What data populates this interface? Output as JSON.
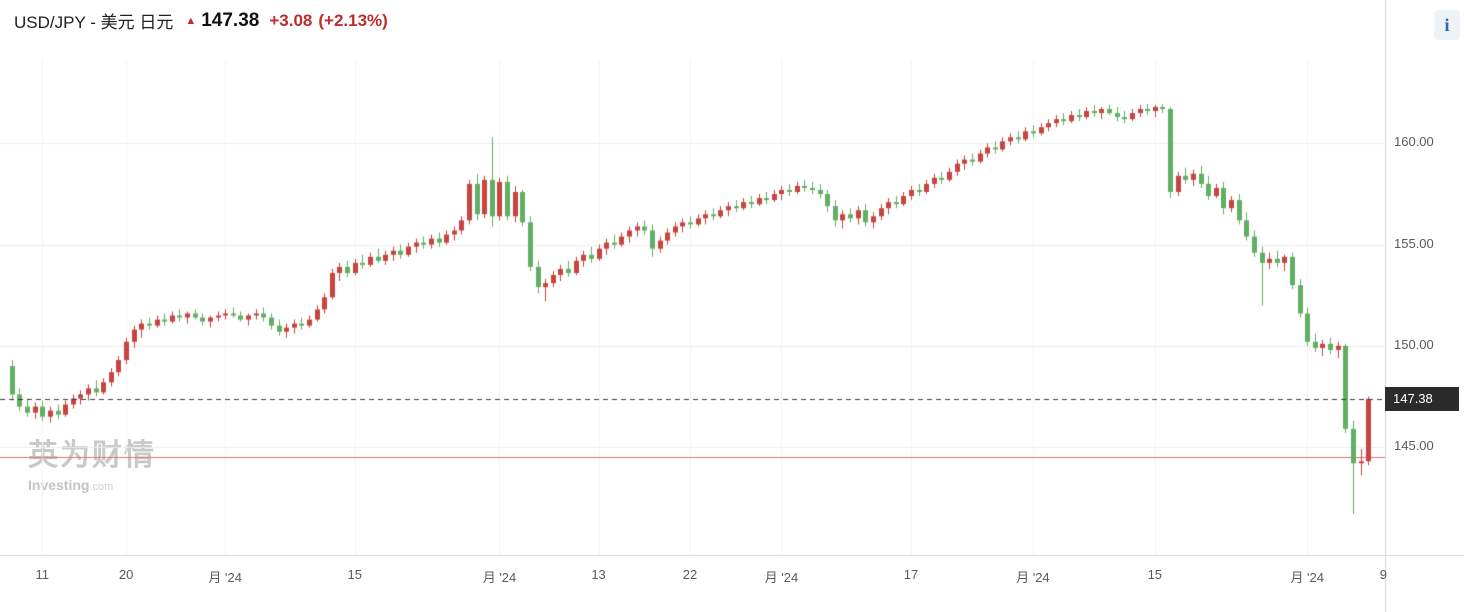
{
  "header": {
    "title": "USD/JPY - 美元 日元",
    "arrow_up": "▲",
    "price": "147.38",
    "change": "+3.08",
    "change_percent": "(+2.13%)"
  },
  "info_button": {
    "label": "i"
  },
  "watermark": {
    "cjk": "英为财情",
    "brand": "Investing",
    "brand_suffix": ".com"
  },
  "chart_data": {
    "type": "candlestick",
    "symbol": "USD/JPY",
    "current_price": 147.38,
    "current_price_label": "147.38",
    "horizontal_red_line": 144.5,
    "ylim": [
      139.67,
      164.12
    ],
    "y_ticks": [
      {
        "value": 160,
        "label": "160.00"
      },
      {
        "value": 155,
        "label": "155.00"
      },
      {
        "value": 150,
        "label": "150.00"
      },
      {
        "value": 145,
        "label": "145.00"
      }
    ],
    "x_labels": [
      {
        "i": 4,
        "label": "11"
      },
      {
        "i": 15,
        "label": "20"
      },
      {
        "i": 28,
        "label": "月 '24"
      },
      {
        "i": 45,
        "label": "15"
      },
      {
        "i": 64,
        "label": "月 '24"
      },
      {
        "i": 77,
        "label": "13"
      },
      {
        "i": 89,
        "label": "22"
      },
      {
        "i": 101,
        "label": "月 '24"
      },
      {
        "i": 118,
        "label": "17"
      },
      {
        "i": 134,
        "label": "月 '24"
      },
      {
        "i": 150,
        "label": "15"
      },
      {
        "i": 170,
        "label": "月 '24"
      },
      {
        "i": 180,
        "label": "9"
      }
    ],
    "colors": {
      "up": "#c64540",
      "down": "#63ae65",
      "grid": "#ededed",
      "grid_vertical": "#f3f3f3",
      "axis_line": "#d6d6d6",
      "dashed_line": "#3c3c3c",
      "red_line": "#e2716d",
      "tag_bg": "#2b2b2b",
      "tag_text": "#ffffff",
      "tick_text": "#5a5a5a",
      "change_red": "#bf2c2c"
    },
    "ohlc": [
      [
        149.0,
        149.3,
        147.3,
        147.6
      ],
      [
        147.6,
        147.9,
        146.8,
        147.0
      ],
      [
        147.0,
        147.4,
        146.5,
        146.7
      ],
      [
        146.7,
        147.2,
        146.4,
        147.0
      ],
      [
        147.0,
        147.3,
        146.3,
        146.5
      ],
      [
        146.5,
        147.0,
        146.2,
        146.8
      ],
      [
        146.8,
        147.1,
        146.4,
        146.6
      ],
      [
        146.6,
        147.3,
        146.5,
        147.1
      ],
      [
        147.1,
        147.6,
        146.9,
        147.4
      ],
      [
        147.4,
        147.8,
        147.1,
        147.6
      ],
      [
        147.6,
        148.1,
        147.3,
        147.9
      ],
      [
        147.9,
        148.3,
        147.5,
        147.7
      ],
      [
        147.7,
        148.4,
        147.6,
        148.2
      ],
      [
        148.2,
        148.9,
        148.0,
        148.7
      ],
      [
        148.7,
        149.5,
        148.5,
        149.3
      ],
      [
        149.3,
        150.4,
        149.1,
        150.2
      ],
      [
        150.2,
        151.0,
        149.9,
        150.8
      ],
      [
        150.8,
        151.3,
        150.4,
        151.1
      ],
      [
        151.1,
        151.4,
        150.8,
        151.0
      ],
      [
        151.0,
        151.5,
        150.9,
        151.3
      ],
      [
        151.3,
        151.6,
        151.0,
        151.2
      ],
      [
        151.2,
        151.7,
        151.1,
        151.5
      ],
      [
        151.5,
        151.8,
        151.2,
        151.4
      ],
      [
        151.4,
        151.7,
        151.1,
        151.6
      ],
      [
        151.6,
        151.8,
        151.3,
        151.4
      ],
      [
        151.4,
        151.6,
        151.0,
        151.2
      ],
      [
        151.2,
        151.5,
        150.9,
        151.4
      ],
      [
        151.4,
        151.7,
        151.2,
        151.5
      ],
      [
        151.5,
        151.8,
        151.3,
        151.6
      ],
      [
        151.6,
        151.9,
        151.4,
        151.5
      ],
      [
        151.5,
        151.7,
        151.2,
        151.3
      ],
      [
        151.3,
        151.6,
        151.0,
        151.5
      ],
      [
        151.5,
        151.8,
        151.3,
        151.6
      ],
      [
        151.6,
        151.9,
        151.2,
        151.4
      ],
      [
        151.4,
        151.6,
        150.8,
        151.0
      ],
      [
        151.0,
        151.3,
        150.5,
        150.7
      ],
      [
        150.7,
        151.1,
        150.4,
        150.9
      ],
      [
        150.9,
        151.3,
        150.6,
        151.1
      ],
      [
        151.1,
        151.4,
        150.8,
        151.0
      ],
      [
        151.0,
        151.5,
        150.9,
        151.3
      ],
      [
        151.3,
        152.0,
        151.2,
        151.8
      ],
      [
        151.8,
        152.6,
        151.6,
        152.4
      ],
      [
        152.4,
        153.8,
        152.3,
        153.6
      ],
      [
        153.6,
        154.1,
        153.2,
        153.9
      ],
      [
        153.9,
        154.2,
        153.4,
        153.6
      ],
      [
        153.6,
        154.3,
        153.5,
        154.1
      ],
      [
        154.1,
        154.5,
        153.8,
        154.0
      ],
      [
        154.0,
        154.6,
        153.9,
        154.4
      ],
      [
        154.4,
        154.8,
        154.1,
        154.2
      ],
      [
        154.2,
        154.7,
        154.0,
        154.5
      ],
      [
        154.5,
        154.9,
        154.2,
        154.7
      ],
      [
        154.7,
        155.0,
        154.3,
        154.5
      ],
      [
        154.5,
        155.1,
        154.4,
        154.9
      ],
      [
        154.9,
        155.3,
        154.6,
        155.1
      ],
      [
        155.1,
        155.4,
        154.8,
        155.0
      ],
      [
        155.0,
        155.5,
        154.8,
        155.3
      ],
      [
        155.3,
        155.6,
        154.9,
        155.1
      ],
      [
        155.1,
        155.7,
        155.0,
        155.5
      ],
      [
        155.5,
        155.9,
        155.2,
        155.7
      ],
      [
        155.7,
        156.4,
        155.5,
        156.2
      ],
      [
        156.2,
        158.2,
        156.0,
        158.0
      ],
      [
        158.0,
        158.5,
        156.2,
        156.5
      ],
      [
        156.5,
        158.4,
        156.3,
        158.2
      ],
      [
        158.2,
        160.3,
        155.9,
        156.4
      ],
      [
        156.4,
        158.3,
        156.2,
        158.1
      ],
      [
        158.1,
        158.4,
        156.2,
        156.4
      ],
      [
        156.4,
        157.9,
        156.1,
        157.6
      ],
      [
        157.6,
        157.7,
        155.9,
        156.1
      ],
      [
        156.1,
        156.4,
        153.7,
        153.9
      ],
      [
        153.9,
        154.2,
        152.6,
        152.9
      ],
      [
        152.9,
        153.3,
        152.2,
        153.1
      ],
      [
        153.1,
        153.7,
        152.9,
        153.5
      ],
      [
        153.5,
        154.0,
        153.2,
        153.8
      ],
      [
        153.8,
        154.2,
        153.4,
        153.6
      ],
      [
        153.6,
        154.4,
        153.5,
        154.2
      ],
      [
        154.2,
        154.7,
        153.9,
        154.5
      ],
      [
        154.5,
        154.9,
        154.1,
        154.3
      ],
      [
        154.3,
        155.0,
        154.2,
        154.8
      ],
      [
        154.8,
        155.3,
        154.5,
        155.1
      ],
      [
        155.1,
        155.5,
        154.8,
        155.0
      ],
      [
        155.0,
        155.6,
        154.9,
        155.4
      ],
      [
        155.4,
        155.9,
        155.1,
        155.7
      ],
      [
        155.7,
        156.1,
        155.4,
        155.9
      ],
      [
        155.9,
        156.2,
        155.5,
        155.7
      ],
      [
        155.7,
        156.0,
        154.4,
        154.8
      ],
      [
        154.8,
        155.4,
        154.6,
        155.2
      ],
      [
        155.2,
        155.8,
        155.0,
        155.6
      ],
      [
        155.6,
        156.1,
        155.4,
        155.9
      ],
      [
        155.9,
        156.3,
        155.6,
        156.1
      ],
      [
        156.1,
        156.4,
        155.8,
        156.0
      ],
      [
        156.0,
        156.5,
        155.9,
        156.3
      ],
      [
        156.3,
        156.7,
        156.0,
        156.5
      ],
      [
        156.5,
        156.8,
        156.2,
        156.4
      ],
      [
        156.4,
        156.9,
        156.3,
        156.7
      ],
      [
        156.7,
        157.1,
        156.4,
        156.9
      ],
      [
        156.9,
        157.2,
        156.6,
        156.8
      ],
      [
        156.8,
        157.3,
        156.7,
        157.1
      ],
      [
        157.1,
        157.4,
        156.8,
        157.0
      ],
      [
        157.0,
        157.5,
        156.9,
        157.3
      ],
      [
        157.3,
        157.6,
        157.0,
        157.2
      ],
      [
        157.2,
        157.7,
        157.1,
        157.5
      ],
      [
        157.5,
        157.9,
        157.2,
        157.7
      ],
      [
        157.7,
        158.0,
        157.4,
        157.6
      ],
      [
        157.6,
        158.1,
        157.5,
        157.9
      ],
      [
        157.9,
        158.2,
        157.6,
        157.8
      ],
      [
        157.8,
        158.1,
        157.5,
        157.7
      ],
      [
        157.7,
        158.0,
        157.3,
        157.5
      ],
      [
        157.5,
        157.7,
        156.6,
        156.9
      ],
      [
        156.9,
        157.2,
        155.9,
        156.2
      ],
      [
        156.2,
        156.7,
        155.8,
        156.5
      ],
      [
        156.5,
        156.8,
        156.1,
        156.3
      ],
      [
        156.3,
        156.9,
        156.0,
        156.7
      ],
      [
        156.7,
        157.0,
        155.9,
        156.1
      ],
      [
        156.1,
        156.6,
        155.8,
        156.4
      ],
      [
        156.4,
        157.0,
        156.2,
        156.8
      ],
      [
        156.8,
        157.3,
        156.5,
        157.1
      ],
      [
        157.1,
        157.4,
        156.8,
        157.0
      ],
      [
        157.0,
        157.6,
        156.9,
        157.4
      ],
      [
        157.4,
        157.9,
        157.2,
        157.7
      ],
      [
        157.7,
        158.0,
        157.4,
        157.6
      ],
      [
        157.6,
        158.2,
        157.5,
        158.0
      ],
      [
        158.0,
        158.5,
        157.8,
        158.3
      ],
      [
        158.3,
        158.6,
        158.0,
        158.2
      ],
      [
        158.2,
        158.8,
        158.1,
        158.6
      ],
      [
        158.6,
        159.2,
        158.4,
        159.0
      ],
      [
        159.0,
        159.4,
        158.7,
        159.2
      ],
      [
        159.2,
        159.5,
        158.9,
        159.1
      ],
      [
        159.1,
        159.7,
        159.0,
        159.5
      ],
      [
        159.5,
        160.0,
        159.3,
        159.8
      ],
      [
        159.8,
        160.1,
        159.5,
        159.7
      ],
      [
        159.7,
        160.3,
        159.6,
        160.1
      ],
      [
        160.1,
        160.5,
        159.9,
        160.3
      ],
      [
        160.3,
        160.6,
        160.0,
        160.2
      ],
      [
        160.2,
        160.8,
        160.1,
        160.6
      ],
      [
        160.6,
        160.9,
        160.3,
        160.5
      ],
      [
        160.5,
        161.0,
        160.4,
        160.8
      ],
      [
        160.8,
        161.2,
        160.6,
        161.0
      ],
      [
        161.0,
        161.4,
        160.8,
        161.2
      ],
      [
        161.2,
        161.5,
        160.9,
        161.1
      ],
      [
        161.1,
        161.6,
        161.0,
        161.4
      ],
      [
        161.4,
        161.7,
        161.1,
        161.3
      ],
      [
        161.3,
        161.8,
        161.2,
        161.6
      ],
      [
        161.6,
        161.9,
        161.3,
        161.5
      ],
      [
        161.5,
        161.8,
        161.2,
        161.7
      ],
      [
        161.7,
        161.9,
        161.4,
        161.5
      ],
      [
        161.5,
        161.8,
        161.1,
        161.3
      ],
      [
        161.3,
        161.6,
        161.0,
        161.2
      ],
      [
        161.2,
        161.7,
        161.1,
        161.5
      ],
      [
        161.5,
        161.9,
        161.3,
        161.7
      ],
      [
        161.7,
        161.95,
        161.4,
        161.6
      ],
      [
        161.6,
        161.9,
        161.3,
        161.8
      ],
      [
        161.8,
        161.95,
        161.5,
        161.7
      ],
      [
        161.7,
        161.8,
        157.3,
        157.6
      ],
      [
        157.6,
        158.6,
        157.4,
        158.4
      ],
      [
        158.4,
        158.8,
        158.0,
        158.2
      ],
      [
        158.2,
        158.7,
        157.9,
        158.5
      ],
      [
        158.5,
        158.9,
        157.8,
        158.0
      ],
      [
        158.0,
        158.4,
        157.2,
        157.4
      ],
      [
        157.4,
        158.0,
        157.3,
        157.8
      ],
      [
        157.8,
        158.1,
        156.5,
        156.8
      ],
      [
        156.8,
        157.4,
        156.6,
        157.2
      ],
      [
        157.2,
        157.5,
        156.0,
        156.2
      ],
      [
        156.2,
        156.6,
        155.2,
        155.4
      ],
      [
        155.4,
        155.7,
        154.4,
        154.6
      ],
      [
        154.6,
        154.9,
        152.0,
        154.1
      ],
      [
        154.1,
        154.6,
        153.8,
        154.3
      ],
      [
        154.3,
        154.7,
        153.9,
        154.1
      ],
      [
        154.1,
        154.5,
        153.7,
        154.4
      ],
      [
        154.4,
        154.6,
        152.8,
        153.0
      ],
      [
        153.0,
        153.3,
        151.4,
        151.6
      ],
      [
        151.6,
        151.9,
        150.0,
        150.2
      ],
      [
        150.2,
        150.6,
        149.7,
        149.9
      ],
      [
        149.9,
        150.3,
        149.5,
        150.1
      ],
      [
        150.1,
        150.4,
        149.6,
        149.8
      ],
      [
        149.8,
        150.2,
        149.4,
        150.0
      ],
      [
        150.0,
        150.1,
        145.7,
        145.9
      ],
      [
        145.9,
        146.3,
        141.7,
        144.2
      ],
      [
        144.2,
        144.9,
        143.6,
        144.3
      ],
      [
        144.3,
        147.5,
        144.1,
        147.38
      ]
    ]
  }
}
